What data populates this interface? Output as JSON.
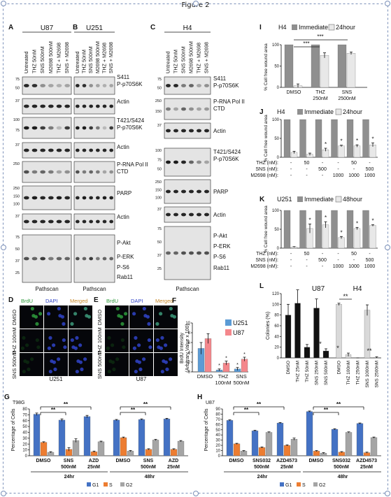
{
  "figure_title": "Figure 2",
  "panels": {
    "A": {
      "letter": "A",
      "header": "U87",
      "lanes": [
        "Untreated",
        "THZ 50nM",
        "SNS 500nM",
        "M2698 500nM",
        "THZ + M2698",
        "SNS + M2698"
      ],
      "blots": [
        "S411 P-p70S6K",
        "Actin",
        "T421/S424 P-p70S6K",
        "Actin",
        "P-RNA Pol II CTD",
        "PARP",
        "Actin",
        "P-Akt",
        "P-ERK",
        "P-S6",
        "Rab11"
      ],
      "footer": "Pathscan"
    },
    "B": {
      "letter": "B",
      "header": "U251",
      "lanes": [
        "Untreated",
        "THZ 50nM",
        "SNS 500nM",
        "M2698 500nM",
        "THZ + M2698",
        "SNS + M2698"
      ],
      "footer": "Pathscan"
    },
    "C": {
      "letter": "C",
      "header": "H4",
      "lanes": [
        "Untreated",
        "THZ 50nM",
        "SNS 500nM",
        "M2698 500nM",
        "THZ + M2698",
        "SNS + M2698"
      ],
      "blots": [
        "S411 P-p70S6K",
        "P-RNA Pol II CTD",
        "Actin",
        "T421/S424 P-p70S6K",
        "PARP",
        "Actin",
        "P-Akt",
        "P-ERK",
        "P-S6",
        "Rab11"
      ],
      "footer": "Pathscan"
    },
    "D": {
      "letter": "D",
      "stains": [
        "BrdU",
        "DAPI",
        "Merged"
      ],
      "rows": [
        "DMSO",
        "THZ 100nM",
        "SNS 500nM"
      ],
      "cell_line": "U251"
    },
    "E": {
      "letter": "E",
      "stains": [
        "BrdU",
        "DAPI",
        "Merged"
      ],
      "cell_line": "U87"
    }
  },
  "colors": {
    "immediate": "#8f8f8f",
    "hour24": "#e8e8e8",
    "u251": "#5b9bd5",
    "u87": "#f4878c",
    "g1": "#4472c4",
    "s": "#ed7d31",
    "g2": "#a5a5a5",
    "brdu": "#2e9b3c",
    "dapi": "#3044c8",
    "merged": "#c78a2c",
    "handle": "#7a8fb8"
  },
  "chart_data": [
    {
      "panel": "I",
      "type": "bar",
      "title": "H4",
      "categories": [
        "DMSO",
        "THZ 250nM",
        "SNS 2500nM"
      ],
      "series": [
        {
          "name": "Immediate",
          "values": [
            100,
            100,
            100
          ]
        },
        {
          "name": "24hour",
          "values": [
            4,
            75,
            80
          ],
          "errors": [
            4,
            6,
            3
          ]
        }
      ],
      "ylabel": "% Cell free wound area",
      "ylim": [
        0,
        100
      ],
      "yticks": [
        "0",
        "50",
        "100"
      ],
      "annotations": [
        "***",
        "***"
      ]
    },
    {
      "panel": "J",
      "type": "bar",
      "title": "H4",
      "groups": [
        [
          "",
          "",
          ""
        ],
        [
          "50",
          "",
          ""
        ],
        [
          "",
          "500",
          ""
        ],
        [
          "",
          "",
          "1000"
        ],
        [
          "50",
          "",
          "1000"
        ],
        [
          "",
          "500",
          "1000"
        ]
      ],
      "condition_labels": [
        "THZ (nM):",
        "SNS (nM):",
        "M2698 (nM):"
      ],
      "series": [
        {
          "name": "Immediate",
          "values": [
            100,
            100,
            100,
            100,
            100,
            100
          ]
        },
        {
          "name": "24hour",
          "values": [
            13,
            8,
            20,
            30,
            30,
            33
          ],
          "errors": [
            3,
            3,
            4,
            2,
            3,
            5
          ]
        }
      ],
      "ylabel": "% Cell free wound area",
      "ylim": [
        0,
        100
      ],
      "yticks": [
        "0",
        "50",
        "100"
      ],
      "annotations": [
        "*",
        "*",
        "*",
        "*"
      ]
    },
    {
      "panel": "K",
      "type": "bar",
      "title": "U251",
      "groups": [
        [
          "",
          "",
          ""
        ],
        [
          "50",
          "",
          ""
        ],
        [
          "",
          "500",
          ""
        ],
        [
          "",
          "",
          "1000"
        ],
        [
          "50",
          "",
          "1000"
        ],
        [
          "",
          "500",
          "1000"
        ]
      ],
      "condition_labels": [
        "THZ (nM):",
        "SNS (nM):",
        "M2698 (nM):"
      ],
      "series": [
        {
          "name": "Immediate",
          "values": [
            100,
            100,
            100,
            100,
            100,
            100
          ]
        },
        {
          "name": "48hour",
          "values": [
            3,
            52,
            62,
            28,
            52,
            60
          ],
          "errors": [
            1,
            12,
            8,
            3,
            3,
            2
          ]
        }
      ],
      "ylabel": "% Cell free wound area",
      "ylim": [
        0,
        100
      ],
      "yticks": [
        "0",
        "50",
        "100"
      ],
      "annotations": [
        "*",
        "*",
        "*",
        "*",
        "*"
      ]
    },
    {
      "panel": "F",
      "type": "bar",
      "categories": [
        "DMSO",
        "THZ 100nM",
        "SNS 500nM"
      ],
      "series": [
        {
          "name": "U251",
          "values": [
            4.8,
            0.4,
            0.6
          ],
          "errors": [
            1.2,
            0.2,
            0.3
          ]
        },
        {
          "name": "U87",
          "values": [
            6.8,
            1.8,
            2.6
          ],
          "errors": [
            1.0,
            0.4,
            0.4
          ]
        }
      ],
      "ylabel": "BrdU Intensity (Arbitrary Value x 100)",
      "ylim": [
        0,
        10
      ],
      "yticks": [
        "0",
        "2",
        "4",
        "6",
        "8",
        "10"
      ],
      "annotations": [
        "*",
        "*",
        "*",
        "*"
      ]
    },
    {
      "panel": "L",
      "type": "bar",
      "titles": [
        "U87",
        "H4"
      ],
      "categories": [
        "DMSO",
        "THZ 25nM",
        "THZ 50nM",
        "SNS 250nM",
        "SNS 500nM",
        "DMSO",
        "THZ 100nM",
        "THZ 250nM",
        "SNS 1000nM",
        "SNS 2500nM"
      ],
      "series": [
        {
          "name": "Colonies",
          "values": [
            80,
            102,
            20,
            93,
            13,
            100,
            6,
            0,
            89,
            1
          ],
          "errors": [
            20,
            25,
            5,
            17,
            4,
            2,
            3,
            0,
            10,
            1
          ]
        }
      ],
      "ylabel": "Colonies (%)",
      "ylim": [
        0,
        120
      ],
      "yticks": [
        "0",
        "20",
        "40",
        "60",
        "80",
        "100",
        "120"
      ],
      "annotations": [
        "*",
        "*",
        "**",
        "**"
      ]
    },
    {
      "panel": "G",
      "type": "bar",
      "title": "T98G",
      "categories": [
        "DMSO",
        "SNS 500nM",
        "AZD 25nM",
        "DMSO",
        "SNS 500nM",
        "AZD 25nM"
      ],
      "timepoints": [
        "24hr",
        "48hr"
      ],
      "series": [
        {
          "name": "G1",
          "values": [
            71,
            61,
            67,
            61,
            62,
            63
          ],
          "errors": [
            2,
            2,
            2,
            1,
            1,
            1
          ]
        },
        {
          "name": "S",
          "values": [
            23,
            11,
            7,
            31,
            11,
            11
          ],
          "errors": [
            1,
            3,
            1,
            1,
            1,
            1
          ]
        },
        {
          "name": "G2",
          "values": [
            6,
            26,
            24,
            8,
            27,
            25
          ],
          "errors": [
            1,
            3,
            1,
            1,
            1,
            1
          ]
        }
      ],
      "ylabel": "Percentage of Cells",
      "ylim": [
        0,
        80
      ],
      "yticks": [
        "0",
        "10",
        "20",
        "30",
        "40",
        "50",
        "60",
        "70",
        "80"
      ],
      "annotations": [
        "**",
        "**",
        "**",
        "**"
      ]
    },
    {
      "panel": "H",
      "type": "bar",
      "title": "U87",
      "categories": [
        "DMSO",
        "SNS032 500nM",
        "AZD4573 25nM",
        "DMSO",
        "SNS032 500nM",
        "AZD4573 25nM"
      ],
      "timepoints": [
        "24hr",
        "48hr"
      ],
      "series": [
        {
          "name": "G1",
          "values": [
            68,
            48,
            63,
            85,
            51,
            62
          ],
          "errors": [
            1,
            1,
            1,
            1,
            1,
            1
          ]
        },
        {
          "name": "S",
          "values": [
            23,
            16,
            20,
            9,
            7,
            6
          ],
          "errors": [
            1,
            1,
            1,
            1,
            1,
            1
          ]
        },
        {
          "name": "G2",
          "values": [
            9,
            45,
            32,
            5,
            45,
            35
          ],
          "errors": [
            1,
            1,
            2,
            1,
            1,
            1
          ]
        }
      ],
      "ylabel": "Percentage of Cells",
      "ylim": [
        0,
        90
      ],
      "yticks": [
        "0",
        "10",
        "20",
        "30",
        "40",
        "50",
        "60",
        "70",
        "80",
        "90"
      ],
      "annotations": [
        "**",
        "**",
        "**",
        "**"
      ]
    }
  ]
}
